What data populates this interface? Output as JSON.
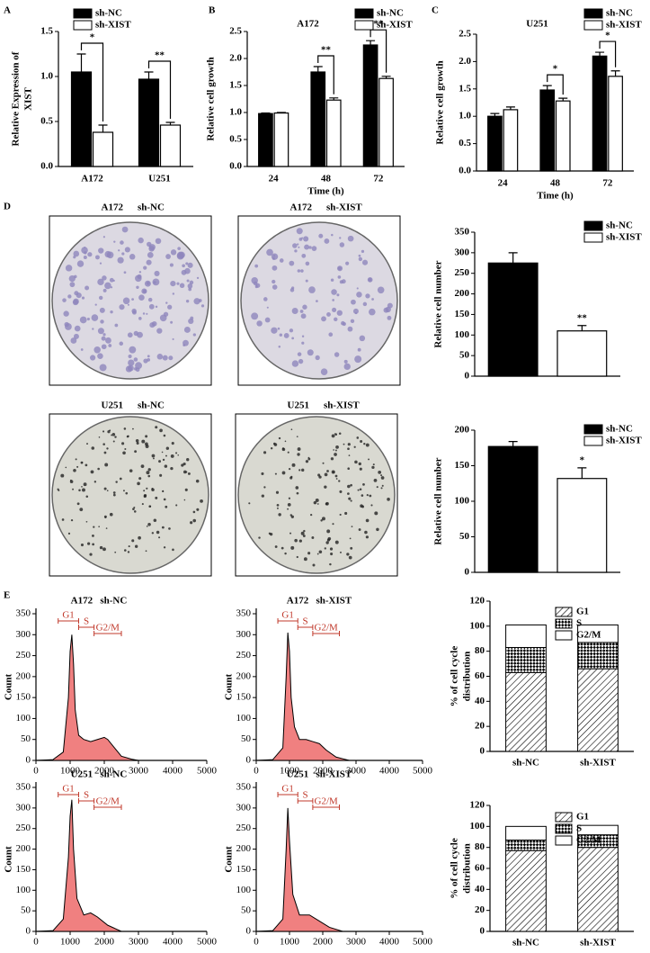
{
  "panels": [
    "A",
    "B",
    "C",
    "D",
    "E"
  ],
  "plates": [
    {
      "cell": "A172",
      "group": "sh-NC"
    },
    {
      "cell": "A172",
      "group": "sh-XIST"
    },
    {
      "cell": "U251",
      "group": "sh-NC"
    },
    {
      "cell": "U251",
      "group": "sh-XIST"
    }
  ],
  "chart_data": [
    {
      "type": "bar",
      "ylabel": [
        "Relative Expression of",
        "XIST"
      ],
      "categories": [
        "A172",
        "U251"
      ],
      "series": [
        {
          "name": "sh-NC",
          "color": "#000000",
          "values": [
            1.05,
            0.97
          ],
          "errors": [
            0.2,
            0.08
          ]
        },
        {
          "name": "sh-XIST",
          "color": "#ffffff",
          "values": [
            0.38,
            0.46
          ],
          "errors": [
            0.08,
            0.03
          ]
        }
      ],
      "annotations": [
        "*",
        "**"
      ],
      "ylim": [
        0,
        1.5
      ],
      "yticks": [
        {
          "value": 0,
          "label": "0.0"
        },
        {
          "value": 0.5,
          "label": "0.5"
        },
        {
          "value": 1,
          "label": "1.0"
        },
        {
          "value": 1.5,
          "label": "1.5"
        }
      ]
    },
    {
      "type": "bar",
      "title": "A172",
      "xlabel": "Time (h)",
      "ylabel": [
        "Relative cell growth"
      ],
      "categories": [
        "24",
        "48",
        "72"
      ],
      "series": [
        {
          "name": "sh-NC",
          "color": "#000000",
          "values": [
            0.98,
            1.75,
            2.25
          ],
          "errors": [
            0.01,
            0.1,
            0.08
          ]
        },
        {
          "name": "sh-XIST",
          "color": "#ffffff",
          "values": [
            0.99,
            1.23,
            1.63
          ],
          "errors": [
            0.01,
            0.04,
            0.04
          ]
        }
      ],
      "annotations": [
        null,
        "**",
        "**"
      ],
      "ylim": [
        0,
        2.5
      ],
      "yticks": [
        {
          "value": 0,
          "label": "0.0"
        },
        {
          "value": 0.5,
          "label": "0.5"
        },
        {
          "value": 1,
          "label": "1.0"
        },
        {
          "value": 1.5,
          "label": "1.5"
        },
        {
          "value": 2,
          "label": "2.0"
        },
        {
          "value": 2.5,
          "label": "2.5"
        }
      ]
    },
    {
      "type": "bar",
      "title": "U251",
      "xlabel": "Time (h)",
      "ylabel": [
        "Relative cell growth"
      ],
      "categories": [
        "24",
        "48",
        "72"
      ],
      "series": [
        {
          "name": "sh-NC",
          "color": "#000000",
          "values": [
            1.0,
            1.48,
            2.1
          ],
          "errors": [
            0.05,
            0.08,
            0.07
          ]
        },
        {
          "name": "sh-XIST",
          "color": "#ffffff",
          "values": [
            1.12,
            1.28,
            1.73
          ],
          "errors": [
            0.05,
            0.05,
            0.1
          ]
        }
      ],
      "annotations": [
        null,
        "*",
        "*"
      ],
      "ylim": [
        0,
        2.5
      ],
      "yticks": [
        {
          "value": 0,
          "label": "0.0"
        },
        {
          "value": 0.5,
          "label": "0.5"
        },
        {
          "value": 1,
          "label": "1.0"
        },
        {
          "value": 1.5,
          "label": "1.5"
        },
        {
          "value": 2,
          "label": "2.0"
        },
        {
          "value": 2.5,
          "label": "2.5"
        }
      ]
    },
    {
      "type": "bar",
      "ylabel": [
        "Relative cell number"
      ],
      "categories": [
        null
      ],
      "series": [
        {
          "name": "sh-NC",
          "color": "#000000",
          "values": [
            275
          ],
          "errors": [
            25
          ]
        },
        {
          "name": "sh-XIST",
          "color": "#ffffff",
          "values": [
            110
          ],
          "errors": [
            13
          ]
        }
      ],
      "annotations": [
        "**"
      ],
      "ylim": [
        0,
        350
      ],
      "yticks": [
        0,
        50,
        100,
        150,
        200,
        250,
        300,
        350
      ]
    },
    {
      "type": "bar",
      "ylabel": [
        "Relative cell number"
      ],
      "categories": [
        null
      ],
      "series": [
        {
          "name": "sh-NC",
          "color": "#000000",
          "values": [
            177
          ],
          "errors": [
            7
          ]
        },
        {
          "name": "sh-XIST",
          "color": "#ffffff",
          "values": [
            132
          ],
          "errors": [
            15
          ]
        }
      ],
      "annotations": [
        "*"
      ],
      "ylim": [
        0,
        200
      ],
      "yticks": [
        0,
        50,
        100,
        150,
        200
      ]
    },
    {
      "type": "area",
      "title": "A172   sh-NC",
      "ylabel": [
        "Count"
      ],
      "color": "#f08080",
      "gates": [
        "G1",
        "S",
        "G2/M"
      ],
      "x": [
        0,
        500,
        800,
        950,
        1000,
        1050,
        1100,
        1150,
        1250,
        1400,
        1600,
        1800,
        2000,
        2100,
        2300,
        2500,
        2800,
        3000,
        5000
      ],
      "values": [
        0,
        2,
        20,
        150,
        260,
        300,
        230,
        120,
        60,
        50,
        45,
        50,
        55,
        50,
        30,
        10,
        3,
        0,
        0
      ],
      "xlim": [
        0,
        5000
      ],
      "xticks": [
        0,
        1000,
        2000,
        3000,
        4000,
        5000
      ],
      "ylim": [
        0,
        350
      ],
      "yticks": [
        0,
        50,
        100,
        150,
        200,
        250,
        300,
        350
      ]
    },
    {
      "type": "area",
      "title": "A172   sh-XIST",
      "ylabel": [
        "Count"
      ],
      "color": "#f08080",
      "gates": [
        "G1",
        "S",
        "G2/M"
      ],
      "x": [
        0,
        500,
        800,
        900,
        950,
        1000,
        1050,
        1150,
        1300,
        1500,
        1700,
        1900,
        2100,
        2400,
        2800,
        5000
      ],
      "values": [
        0,
        2,
        30,
        200,
        305,
        260,
        150,
        80,
        50,
        50,
        45,
        40,
        25,
        8,
        0,
        0
      ],
      "xlim": [
        0,
        5000
      ],
      "xticks": [
        0,
        1000,
        2000,
        3000,
        4000,
        5000
      ],
      "ylim": [
        0,
        350
      ],
      "yticks": [
        0,
        50,
        100,
        150,
        200,
        250,
        300,
        350
      ]
    },
    {
      "type": "area",
      "title": "U251   sh-NC",
      "ylabel": [
        "Count"
      ],
      "color": "#f08080",
      "gates": [
        "G1",
        "S",
        "G2/M"
      ],
      "x": [
        0,
        500,
        800,
        950,
        1000,
        1050,
        1100,
        1200,
        1400,
        1600,
        1800,
        2100,
        2500,
        5000
      ],
      "values": [
        0,
        2,
        30,
        180,
        280,
        320,
        200,
        80,
        40,
        45,
        35,
        15,
        0,
        0
      ],
      "xlim": [
        0,
        5000
      ],
      "xticks": [
        0,
        1000,
        2000,
        3000,
        4000,
        5000
      ],
      "ylim": [
        0,
        350
      ],
      "yticks": [
        0,
        50,
        100,
        150,
        200,
        250,
        300,
        350
      ]
    },
    {
      "type": "area",
      "title": "U251   sh-XIST",
      "ylabel": [
        "Count"
      ],
      "color": "#f08080",
      "gates": [
        "G1",
        "S",
        "G2/M"
      ],
      "x": [
        0,
        500,
        800,
        900,
        950,
        1000,
        1100,
        1300,
        1600,
        1900,
        2200,
        2600,
        5000
      ],
      "values": [
        0,
        2,
        30,
        200,
        300,
        220,
        90,
        40,
        40,
        25,
        10,
        0,
        0
      ],
      "xlim": [
        0,
        5000
      ],
      "xticks": [
        0,
        1000,
        2000,
        3000,
        4000,
        5000
      ],
      "ylim": [
        0,
        350
      ],
      "yticks": [
        0,
        50,
        100,
        150,
        200,
        250,
        300,
        350
      ]
    },
    {
      "type": "stacked_bar",
      "ylabel": [
        "% of cell cycle",
        "distribution"
      ],
      "categories": [
        "sh-NC",
        "sh-XIST"
      ],
      "series": [
        {
          "name": "G1",
          "pattern": "diagonal",
          "values": [
            63,
            66
          ]
        },
        {
          "name": "S",
          "pattern": "cross",
          "values": [
            20,
            21
          ]
        },
        {
          "name": "G2/M",
          "pattern": "none",
          "values": [
            18,
            14
          ]
        }
      ],
      "ylim": [
        0,
        120
      ],
      "yticks": [
        0,
        20,
        40,
        60,
        80,
        100,
        120
      ]
    },
    {
      "type": "stacked_bar",
      "ylabel": [
        "% of cell cycle",
        "distribution"
      ],
      "categories": [
        "sh-NC",
        "sh-XIST"
      ],
      "series": [
        {
          "name": "G1",
          "pattern": "diagonal",
          "values": [
            77,
            80
          ]
        },
        {
          "name": "S",
          "pattern": "cross",
          "values": [
            10,
            12
          ]
        },
        {
          "name": "G2/M",
          "pattern": "none",
          "values": [
            13,
            9
          ]
        }
      ],
      "ylim": [
        0,
        120
      ],
      "yticks": [
        0,
        20,
        40,
        60,
        80,
        100,
        120
      ]
    }
  ]
}
